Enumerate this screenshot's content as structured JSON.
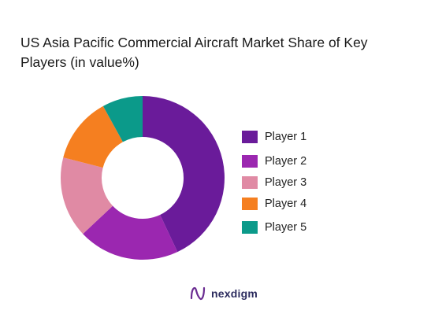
{
  "chart_data": {
    "type": "pie",
    "title": "US Asia Pacific Commercial Aircraft Market Share of Key Players (in value%)",
    "title_lines": [
      "US Asia Pacific Commercial Aircraft Market Share of Key",
      "Players (in value%)"
    ],
    "donut": true,
    "categories": [
      "Player 1",
      "Player 2",
      "Player 3",
      "Player 4",
      "Player 5"
    ],
    "values": [
      43,
      20,
      16,
      13,
      8
    ],
    "colors": [
      "#6a1b9a",
      "#9b27b0",
      "#e08aa4",
      "#f57f20",
      "#0b9a8a"
    ],
    "legend_position": "right"
  },
  "logo": {
    "text": "nexdigm",
    "icon": "nexdigm-n-logo-icon"
  }
}
